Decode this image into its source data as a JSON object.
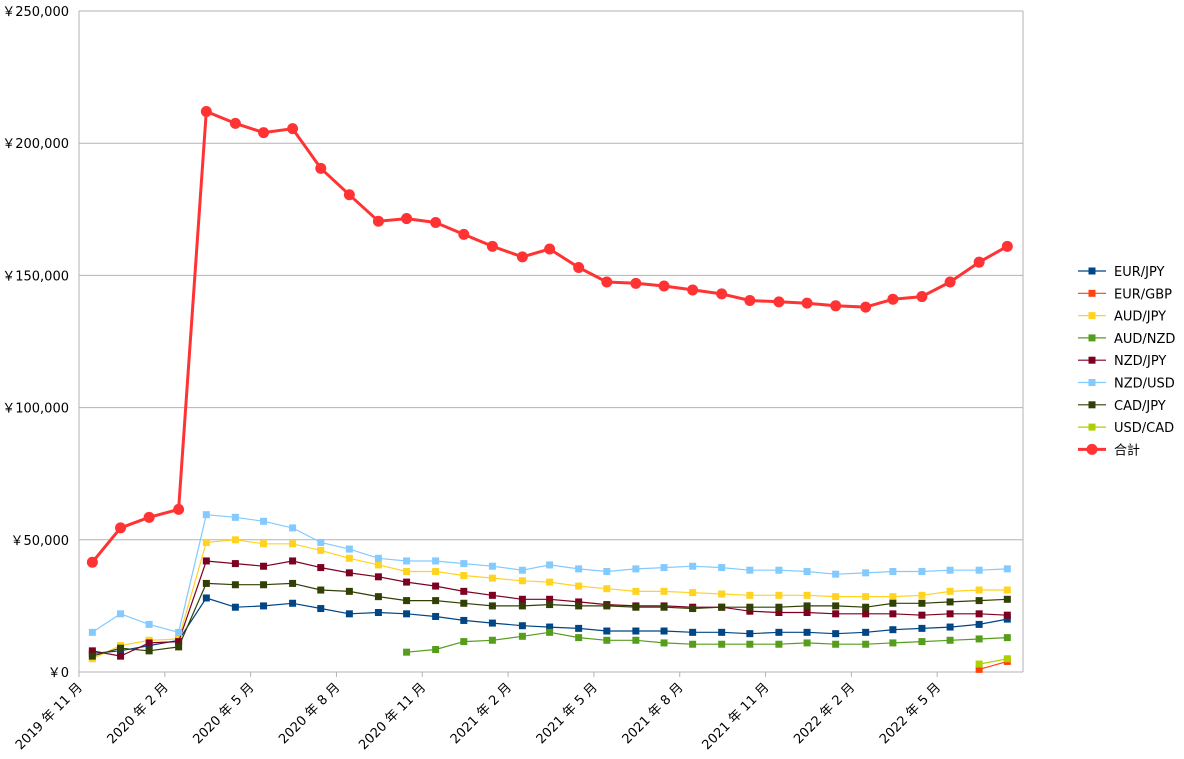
{
  "chart_data": {
    "type": "line",
    "title": "",
    "xlabel": "",
    "ylabel": "",
    "ylim": [
      0,
      250000
    ],
    "yticks": [
      0,
      50000,
      100000,
      150000,
      200000,
      250000
    ],
    "ytick_labels": [
      "￥0",
      "￥50,000",
      "￥100,000",
      "￥150,000",
      "￥200,000",
      "￥250,000"
    ],
    "x_start": "2019-11",
    "x_end": "2022-07",
    "xtick_labels": [
      "2019 年 11 月",
      "2020 年 2 月",
      "2020 年 5 月",
      "2020 年 8 月",
      "2020 年 11 月",
      "2021 年 2 月",
      "2021 年 5 月",
      "2021 年 8 月",
      "2021 年 11 月",
      "2022 年 2 月",
      "2022 年 5 月"
    ],
    "x": [
      "2019-11-15",
      "2019-12-15",
      "2020-01-15",
      "2020-02-15",
      "2020-03-15",
      "2020-04-15",
      "2020-05-15",
      "2020-06-15",
      "2020-07-15",
      "2020-08-15",
      "2020-09-15",
      "2020-10-15",
      "2020-11-15",
      "2020-12-15",
      "2021-01-15",
      "2021-02-15",
      "2021-03-15",
      "2021-04-15",
      "2021-05-15",
      "2021-06-15",
      "2021-07-15",
      "2021-08-15",
      "2021-09-15",
      "2021-10-15",
      "2021-11-15",
      "2021-12-15",
      "2022-01-15",
      "2022-02-15",
      "2022-03-15",
      "2022-04-15",
      "2022-05-15",
      "2022-06-15",
      "2022-07-15"
    ],
    "grid": true,
    "legend_position": "right",
    "series": [
      {
        "name": "EUR/JPY",
        "color": "#004586",
        "marker": "square",
        "width": 1.2,
        "values": [
          7000,
          8000,
          10000,
          12000,
          28000,
          24500,
          25000,
          26000,
          24000,
          22000,
          22500,
          22000,
          21000,
          19500,
          18500,
          17500,
          17000,
          16500,
          15500,
          15500,
          15500,
          15000,
          15000,
          14500,
          15000,
          15000,
          14500,
          15000,
          16000,
          16500,
          17000,
          18000,
          20000
        ]
      },
      {
        "name": "EUR/GBP",
        "color": "#ff420e",
        "marker": "square",
        "width": 1.2,
        "values": [
          null,
          null,
          null,
          null,
          null,
          null,
          null,
          null,
          null,
          null,
          null,
          null,
          null,
          null,
          null,
          null,
          null,
          null,
          null,
          null,
          null,
          null,
          null,
          null,
          null,
          null,
          null,
          null,
          null,
          null,
          null,
          1000,
          4000
        ]
      },
      {
        "name": "AUD/JPY",
        "color": "#ffd320",
        "marker": "square",
        "width": 1.2,
        "values": [
          5000,
          10000,
          12000,
          12500,
          49000,
          50000,
          48500,
          48500,
          46000,
          43000,
          40500,
          38000,
          38000,
          36500,
          35500,
          34500,
          34000,
          32500,
          31500,
          30500,
          30500,
          30000,
          29500,
          29000,
          29000,
          29000,
          28500,
          28500,
          28500,
          29000,
          30500,
          31000,
          31000
        ]
      },
      {
        "name": "AUD/NZD",
        "color": "#579d1c",
        "marker": "square",
        "width": 1.2,
        "values": [
          null,
          null,
          null,
          null,
          null,
          null,
          null,
          null,
          null,
          null,
          null,
          7500,
          8500,
          11500,
          12000,
          13500,
          15000,
          13000,
          12000,
          12000,
          11000,
          10500,
          10500,
          10500,
          10500,
          11000,
          10500,
          10500,
          11000,
          11500,
          12000,
          12500,
          13000
        ]
      },
      {
        "name": "NZD/JPY",
        "color": "#7e0021",
        "marker": "square",
        "width": 1.2,
        "values": [
          8000,
          6000,
          11000,
          11500,
          42000,
          41000,
          40000,
          42000,
          39500,
          37500,
          36000,
          34000,
          32500,
          30500,
          29000,
          27500,
          27500,
          26500,
          25500,
          25000,
          25000,
          24500,
          24500,
          23000,
          22500,
          22500,
          22000,
          22000,
          22000,
          21500,
          22000,
          22000,
          21500
        ]
      },
      {
        "name": "NZD/USD",
        "color": "#83caff",
        "marker": "square",
        "width": 1.2,
        "values": [
          15000,
          22000,
          18000,
          15000,
          59500,
          58500,
          57000,
          54500,
          49000,
          46500,
          43000,
          42000,
          42000,
          41000,
          40000,
          38500,
          40500,
          39000,
          38000,
          39000,
          39500,
          40000,
          39500,
          38500,
          38500,
          38000,
          37000,
          37500,
          38000,
          38000,
          38500,
          38500,
          39000
        ]
      },
      {
        "name": "CAD/JPY",
        "color": "#314004",
        "marker": "square",
        "width": 1.2,
        "values": [
          6000,
          9000,
          8000,
          9500,
          33500,
          33000,
          33000,
          33500,
          31000,
          30500,
          28500,
          27000,
          27000,
          26000,
          25000,
          25000,
          25500,
          25000,
          25000,
          24500,
          24500,
          24000,
          24500,
          24500,
          24500,
          25000,
          25000,
          24500,
          26000,
          26000,
          26500,
          27000,
          27500
        ]
      },
      {
        "name": "USD/CAD",
        "color": "#aecf00",
        "marker": "square",
        "width": 1.2,
        "values": [
          null,
          null,
          null,
          null,
          null,
          null,
          null,
          null,
          null,
          null,
          null,
          null,
          null,
          null,
          null,
          null,
          null,
          null,
          null,
          null,
          null,
          null,
          null,
          null,
          null,
          null,
          null,
          null,
          null,
          null,
          null,
          3000,
          5000
        ]
      },
      {
        "name": "合計",
        "color": "#ff3333",
        "marker": "circle",
        "width": 3,
        "values": [
          41500,
          54500,
          58500,
          61500,
          212000,
          207500,
          204000,
          205500,
          190500,
          180500,
          170500,
          171500,
          170000,
          165500,
          161000,
          157000,
          160000,
          153000,
          147500,
          147000,
          146000,
          144500,
          143000,
          140500,
          140000,
          139500,
          138500,
          138000,
          141000,
          142000,
          147500,
          155000,
          161000
        ]
      }
    ]
  }
}
